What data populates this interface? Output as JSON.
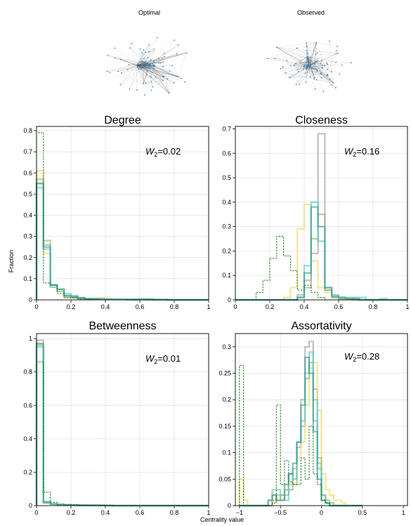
{
  "networks": {
    "optimal_label": "Optimal",
    "observed_label": "Observed"
  },
  "axes": {
    "ylabel": "Fraction",
    "xlabel": "Centrality value"
  },
  "colors": {
    "grey": "#a89e9b",
    "yellow": "#f5d66a",
    "green": "#8ab868",
    "cyan": "#58c8cc",
    "teal": "#3a9e9a",
    "observed": "#1f7a1f"
  },
  "chart_data": [
    {
      "type": "histogram",
      "title": "Degree",
      "w2": "0.02",
      "xlim": [
        0,
        1
      ],
      "ylim": [
        0,
        0.82
      ],
      "xticks": [
        "0",
        "0.2",
        "0.4",
        "0.6",
        "0.8",
        "1"
      ],
      "yticks": [
        "0",
        "0.1",
        "0.2",
        "0.3",
        "0.4",
        "0.5",
        "0.6",
        "0.7",
        "0.8"
      ],
      "ytick_values": [
        0,
        0.1,
        0.2,
        0.3,
        0.4,
        0.5,
        0.6,
        0.7,
        0.8
      ],
      "bin_edges": [
        0,
        0.04,
        0.08,
        0.12,
        0.16,
        0.2,
        0.24,
        0.28,
        0.32,
        0.36,
        0.4,
        0.44,
        0.48,
        0.52,
        0.56,
        0.6,
        0.64,
        0.68,
        0.72,
        0.76,
        0.8,
        0.84,
        0.88,
        0.92,
        0.96,
        1.0
      ],
      "series": [
        {
          "color": "grey",
          "dashed": false,
          "values": [
            0.55,
            0.26,
            0.07,
            0.05,
            0.02,
            0.015,
            0.01,
            0.005,
            0.005,
            0.003,
            0.003,
            0.002,
            0.002,
            0.002,
            0.001,
            0.001,
            0.001,
            0.001,
            0.001,
            0.0,
            0.0,
            0.0,
            0.0,
            0.0,
            0.0
          ]
        },
        {
          "color": "yellow",
          "dashed": false,
          "values": [
            0.61,
            0.22,
            0.06,
            0.04,
            0.02,
            0.01,
            0.01,
            0.005,
            0.005,
            0.01,
            0.005,
            0.003,
            0.002,
            0.002,
            0.0,
            0.0,
            0.0,
            0.0,
            0.0,
            0.0,
            0.0,
            0.0,
            0.0,
            0.0,
            0.0
          ]
        },
        {
          "color": "green",
          "dashed": false,
          "values": [
            0.57,
            0.28,
            0.07,
            0.04,
            0.015,
            0.01,
            0.005,
            0.005,
            0.005,
            0.005,
            0.002,
            0.002,
            0.002,
            0.0,
            0.0,
            0.002,
            0.0,
            0.0,
            0.0,
            0.0,
            0.0,
            0.0,
            0.0,
            0.0,
            0.0
          ]
        },
        {
          "color": "cyan",
          "dashed": false,
          "values": [
            0.53,
            0.24,
            0.06,
            0.05,
            0.03,
            0.02,
            0.01,
            0.005,
            0.005,
            0.003,
            0.002,
            0.002,
            0.003,
            0.002,
            0.003,
            0.005,
            0.005,
            0.002,
            0.002,
            0.0,
            0.0,
            0.0,
            0.0,
            0.0,
            0.0
          ]
        },
        {
          "color": "teal",
          "dashed": false,
          "values": [
            0.55,
            0.25,
            0.07,
            0.05,
            0.02,
            0.015,
            0.01,
            0.005,
            0.005,
            0.003,
            0.003,
            0.002,
            0.002,
            0.002,
            0.002,
            0.002,
            0.002,
            0.001,
            0.001,
            0.0,
            0.0,
            0.0,
            0.0,
            0.0,
            0.0
          ]
        },
        {
          "color": "observed",
          "dashed": true,
          "values": [
            0.79,
            0.08,
            0.07,
            0.03,
            0.01,
            0.01,
            0.005,
            0.003,
            0.002,
            0.0,
            0.0,
            0.0,
            0.0,
            0.0,
            0.0,
            0.0,
            0.0,
            0.0,
            0.0,
            0.0,
            0.0,
            0.0,
            0.0,
            0.0,
            0.0
          ]
        }
      ]
    },
    {
      "type": "histogram",
      "title": "Closeness",
      "w2": "0.16",
      "xlim": [
        0,
        1
      ],
      "ylim": [
        0,
        0.71
      ],
      "xticks": [
        "0",
        "0.2",
        "0.4",
        "0.6",
        "0.8",
        "1"
      ],
      "yticks": [
        "0",
        "0.1",
        "0.2",
        "0.3",
        "0.4",
        "0.5",
        "0.6",
        "0.7"
      ],
      "ytick_values": [
        0,
        0.1,
        0.2,
        0.3,
        0.4,
        0.5,
        0.6,
        0.7
      ],
      "bin_edges": [
        0,
        0.04,
        0.08,
        0.12,
        0.16,
        0.2,
        0.24,
        0.28,
        0.32,
        0.36,
        0.4,
        0.44,
        0.48,
        0.52,
        0.56,
        0.6,
        0.64,
        0.68,
        0.72,
        0.76,
        0.8,
        0.84,
        0.88,
        0.92,
        0.96,
        1.0
      ],
      "series": [
        {
          "color": "grey",
          "dashed": false,
          "values": [
            0,
            0,
            0,
            0,
            0,
            0,
            0,
            0,
            0,
            0.02,
            0.05,
            0.19,
            0.68,
            0.04,
            0.01,
            0.005,
            0.005,
            0.005,
            0,
            0,
            0,
            0,
            0,
            0,
            0
          ]
        },
        {
          "color": "yellow",
          "dashed": false,
          "values": [
            0,
            0,
            0,
            0,
            0,
            0,
            0,
            0.01,
            0.05,
            0.29,
            0.39,
            0.16,
            0.05,
            0.03,
            0.01,
            0.005,
            0,
            0,
            0,
            0,
            0,
            0,
            0,
            0,
            0
          ]
        },
        {
          "color": "green",
          "dashed": false,
          "values": [
            0,
            0,
            0,
            0,
            0,
            0,
            0,
            0,
            0,
            0.01,
            0.08,
            0.25,
            0.35,
            0.04,
            0.01,
            0.005,
            0.005,
            0,
            0,
            0,
            0,
            0,
            0,
            0,
            0
          ]
        },
        {
          "color": "cyan",
          "dashed": false,
          "values": [
            0,
            0,
            0,
            0,
            0,
            0,
            0,
            0,
            0,
            0.01,
            0.14,
            0.4,
            0.24,
            0.05,
            0.02,
            0.01,
            0.01,
            0.01,
            0.01,
            0,
            0,
            0.005,
            0,
            0,
            0
          ]
        },
        {
          "color": "teal",
          "dashed": false,
          "values": [
            0,
            0,
            0,
            0,
            0,
            0,
            0,
            0,
            0,
            0.01,
            0.11,
            0.38,
            0.3,
            0.05,
            0.015,
            0.01,
            0.005,
            0.005,
            0,
            0,
            0,
            0,
            0,
            0,
            0
          ]
        },
        {
          "color": "observed",
          "dashed": true,
          "values": [
            0,
            0,
            0,
            0.03,
            0.08,
            0.17,
            0.26,
            0.18,
            0.12,
            0.04,
            0.06,
            0.03,
            0.01,
            0,
            0,
            0,
            0,
            0,
            0,
            0,
            0,
            0,
            0,
            0,
            0
          ]
        }
      ]
    },
    {
      "type": "histogram",
      "title": "Betweenness",
      "w2": "0.01",
      "xlim": [
        0,
        1
      ],
      "ylim": [
        0,
        1.03
      ],
      "xticks": [
        "0",
        "0.2",
        "0.4",
        "0.6",
        "0.8",
        "1"
      ],
      "yticks": [
        "0",
        "0.2",
        "0.4",
        "0.6",
        "0.8",
        "1"
      ],
      "ytick_values": [
        0,
        0.2,
        0.4,
        0.6,
        0.8,
        1.0
      ],
      "bin_edges": [
        0,
        0.04,
        0.08,
        0.12,
        0.16,
        0.2,
        0.24,
        0.28,
        0.32,
        0.36,
        0.4,
        0.44,
        0.48,
        0.52,
        0.56,
        0.6,
        0.64,
        0.68,
        0.72,
        0.76,
        0.8,
        0.84,
        0.88,
        0.92,
        0.96,
        1.0
      ],
      "series": [
        {
          "color": "grey",
          "dashed": false,
          "values": [
            0.99,
            0.015,
            0.01,
            0.005,
            0.005,
            0.005,
            0.003,
            0.003,
            0.002,
            0.002,
            0.001,
            0,
            0,
            0,
            0,
            0,
            0,
            0,
            0,
            0,
            0,
            0,
            0,
            0,
            0
          ]
        },
        {
          "color": "yellow",
          "dashed": false,
          "values": [
            0.97,
            0.02,
            0.01,
            0.005,
            0.005,
            0.003,
            0.002,
            0.002,
            0.002,
            0.002,
            0.001,
            0,
            0,
            0,
            0,
            0,
            0,
            0,
            0,
            0,
            0,
            0,
            0,
            0,
            0
          ]
        },
        {
          "color": "green",
          "dashed": false,
          "values": [
            0.96,
            0.02,
            0.01,
            0.005,
            0.005,
            0.003,
            0.002,
            0.002,
            0.002,
            0.001,
            0.001,
            0,
            0,
            0,
            0,
            0,
            0,
            0,
            0,
            0,
            0,
            0,
            0,
            0,
            0
          ]
        },
        {
          "color": "cyan",
          "dashed": false,
          "values": [
            0.95,
            0.025,
            0.01,
            0.005,
            0.005,
            0.003,
            0.002,
            0.002,
            0.002,
            0.001,
            0.001,
            0,
            0,
            0,
            0,
            0,
            0,
            0,
            0,
            0,
            0,
            0,
            0,
            0,
            0
          ]
        },
        {
          "color": "teal",
          "dashed": false,
          "values": [
            0.97,
            0.02,
            0.01,
            0.005,
            0.005,
            0.003,
            0.002,
            0.002,
            0.002,
            0.002,
            0.001,
            0,
            0,
            0,
            0,
            0,
            0,
            0,
            0,
            0,
            0,
            0,
            0,
            0,
            0
          ]
        },
        {
          "color": "observed",
          "dashed": true,
          "values": [
            0.86,
            0.08,
            0.02,
            0.01,
            0.005,
            0.005,
            0.003,
            0.002,
            0.002,
            0.002,
            0.001,
            0,
            0,
            0,
            0,
            0,
            0,
            0,
            0,
            0,
            0,
            0,
            0,
            0,
            0
          ]
        }
      ]
    },
    {
      "type": "histogram",
      "title": "Assortativity",
      "w2": "0.28",
      "xlim": [
        -1.05,
        1.05
      ],
      "ylim": [
        0,
        0.325
      ],
      "xticks": [
        "−1",
        "−0.5",
        "0",
        "0.5",
        "1"
      ],
      "xtick_values": [
        -1,
        -0.5,
        0,
        0.5,
        1
      ],
      "yticks": [
        "0",
        "0.05",
        "0.1",
        "0.15",
        "0.2",
        "0.25",
        "0.3"
      ],
      "ytick_values": [
        0,
        0.05,
        0.1,
        0.15,
        0.2,
        0.25,
        0.3
      ],
      "bin_edges": [
        -1.0,
        -0.95,
        -0.9,
        -0.85,
        -0.8,
        -0.75,
        -0.7,
        -0.65,
        -0.6,
        -0.55,
        -0.5,
        -0.45,
        -0.4,
        -0.35,
        -0.3,
        -0.25,
        -0.2,
        -0.15,
        -0.1,
        -0.05,
        0.0,
        0.05,
        0.1,
        0.15,
        0.2,
        0.25,
        0.3,
        0.35,
        0.4,
        0.45,
        0.5
      ],
      "series": [
        {
          "color": "grey",
          "dashed": false,
          "values": [
            0,
            0,
            0,
            0,
            0,
            0,
            0,
            0,
            0.01,
            0.02,
            0.01,
            0.02,
            0.03,
            0.07,
            0.11,
            0.15,
            0.3,
            0.31,
            0.22,
            0.08,
            0.02,
            0.005,
            0,
            0,
            0,
            0,
            0,
            0,
            0,
            0
          ]
        },
        {
          "color": "yellow",
          "dashed": false,
          "values": [
            0.05,
            0.01,
            0,
            0,
            0,
            0,
            0,
            0,
            0.01,
            0.02,
            0.01,
            0.03,
            0.04,
            0.05,
            0.09,
            0.12,
            0.19,
            0.26,
            0.27,
            0.18,
            0.06,
            0.03,
            0.02,
            0.01,
            0.01,
            0.005,
            0,
            0,
            0,
            0
          ]
        },
        {
          "color": "green",
          "dashed": false,
          "values": [
            0,
            0,
            0,
            0,
            0,
            0,
            0,
            0,
            0.02,
            0.01,
            0.02,
            0.03,
            0.06,
            0.04,
            0.12,
            0.2,
            0.24,
            0.27,
            0.16,
            0.09,
            0.02,
            0.01,
            0.005,
            0,
            0,
            0,
            0,
            0,
            0,
            0
          ]
        },
        {
          "color": "cyan",
          "dashed": false,
          "values": [
            0,
            0,
            0,
            0,
            0,
            0,
            0,
            0.01,
            0.03,
            0.03,
            0.02,
            0.01,
            0.06,
            0.05,
            0.12,
            0.16,
            0.25,
            0.29,
            0.2,
            0.07,
            0.01,
            0.005,
            0,
            0,
            0,
            0,
            0,
            0,
            0,
            0
          ]
        },
        {
          "color": "teal",
          "dashed": false,
          "values": [
            0,
            0,
            0,
            0,
            0,
            0,
            0,
            0.01,
            0.02,
            0.01,
            0.01,
            0.04,
            0.06,
            0.08,
            0.12,
            0.19,
            0.28,
            0.25,
            0.14,
            0.05,
            0.01,
            0.005,
            0,
            0,
            0,
            0,
            0,
            0,
            0,
            0
          ]
        },
        {
          "color": "observed",
          "dashed": true,
          "values": [
            0.265,
            0,
            0,
            0,
            0,
            0,
            0,
            0,
            0.005,
            0.19,
            0.04,
            0.085,
            0.045,
            0.04,
            0.04,
            0.09,
            0.05,
            0.15,
            0.06,
            0.04,
            0.01,
            0.005,
            0,
            0,
            0,
            0,
            0,
            0,
            0,
            0
          ]
        }
      ]
    }
  ]
}
